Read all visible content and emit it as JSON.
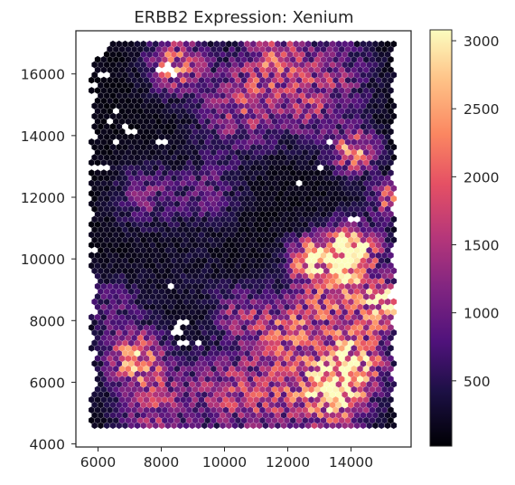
{
  "chart_data": {
    "type": "scatter",
    "subtype": "hexbin spatial expression map",
    "title": "ERBB2 Expression: Xenium",
    "xlabel": "",
    "ylabel": "",
    "xlim": [
      5300,
      15900
    ],
    "ylim": [
      17400,
      3900
    ],
    "y_inverted": true,
    "xticks": [
      6000,
      8000,
      10000,
      12000,
      14000
    ],
    "yticks": [
      4000,
      6000,
      8000,
      10000,
      12000,
      14000,
      16000
    ],
    "colorbar": {
      "label": "",
      "colormap": "magma",
      "range": [
        20,
        3080
      ],
      "ticks": [
        500,
        1000,
        1500,
        2000,
        2500,
        3000
      ]
    },
    "tissue_extent": {
      "x": [
        5700,
        15400
      ],
      "y": [
        4600,
        17000
      ]
    },
    "hotspots": [
      {
        "x": 13400,
        "y": 5600,
        "value": 2300,
        "spread": 1400
      },
      {
        "x": 14200,
        "y": 6700,
        "value": 1900,
        "spread": 1300
      },
      {
        "x": 13800,
        "y": 9000,
        "value": 1700,
        "spread": 1800
      },
      {
        "x": 12700,
        "y": 10000,
        "value": 2300,
        "spread": 800
      },
      {
        "x": 14000,
        "y": 10400,
        "value": 2500,
        "spread": 1000
      },
      {
        "x": 12000,
        "y": 7600,
        "value": 1500,
        "spread": 1500
      },
      {
        "x": 7200,
        "y": 6800,
        "value": 2100,
        "spread": 1100
      },
      {
        "x": 7800,
        "y": 5200,
        "value": 1200,
        "spread": 1500
      },
      {
        "x": 11400,
        "y": 5400,
        "value": 1100,
        "spread": 1800
      },
      {
        "x": 9800,
        "y": 5800,
        "value": 900,
        "spread": 1600
      },
      {
        "x": 14100,
        "y": 13500,
        "value": 2000,
        "spread": 900
      },
      {
        "x": 10500,
        "y": 14800,
        "value": 1300,
        "spread": 1600
      },
      {
        "x": 8500,
        "y": 16300,
        "value": 1900,
        "spread": 1100
      },
      {
        "x": 11500,
        "y": 16500,
        "value": 1500,
        "spread": 1400
      },
      {
        "x": 13500,
        "y": 16000,
        "value": 1000,
        "spread": 1500
      },
      {
        "x": 7500,
        "y": 12000,
        "value": 900,
        "spread": 1200
      },
      {
        "x": 9400,
        "y": 12200,
        "value": 800,
        "spread": 1300
      },
      {
        "x": 10400,
        "y": 8200,
        "value": 1000,
        "spread": 1000
      },
      {
        "x": 12700,
        "y": 14800,
        "value": 900,
        "spread": 1300
      },
      {
        "x": 15200,
        "y": 8500,
        "value": 1800,
        "spread": 900
      },
      {
        "x": 15200,
        "y": 12000,
        "value": 1700,
        "spread": 700
      },
      {
        "x": 6500,
        "y": 8500,
        "value": 700,
        "spread": 1200
      },
      {
        "x": 9000,
        "y": 9500,
        "value": 200,
        "spread": 1500
      }
    ],
    "missing_spots": [
      [
        8700,
        7300
      ],
      [
        9100,
        7300
      ],
      [
        8500,
        7700
      ],
      [
        8700,
        8000
      ],
      [
        8300,
        9100
      ],
      [
        6200,
        13000
      ],
      [
        6500,
        13800
      ],
      [
        6300,
        14500
      ],
      [
        6600,
        14800
      ],
      [
        6900,
        14200
      ],
      [
        7200,
        14100
      ],
      [
        8000,
        13800
      ],
      [
        12300,
        12400
      ],
      [
        13100,
        13000
      ],
      [
        13300,
        13800
      ],
      [
        14100,
        11300
      ],
      [
        6200,
        16000
      ],
      [
        8000,
        16100
      ],
      [
        8200,
        16200
      ],
      [
        8400,
        16000
      ]
    ]
  }
}
